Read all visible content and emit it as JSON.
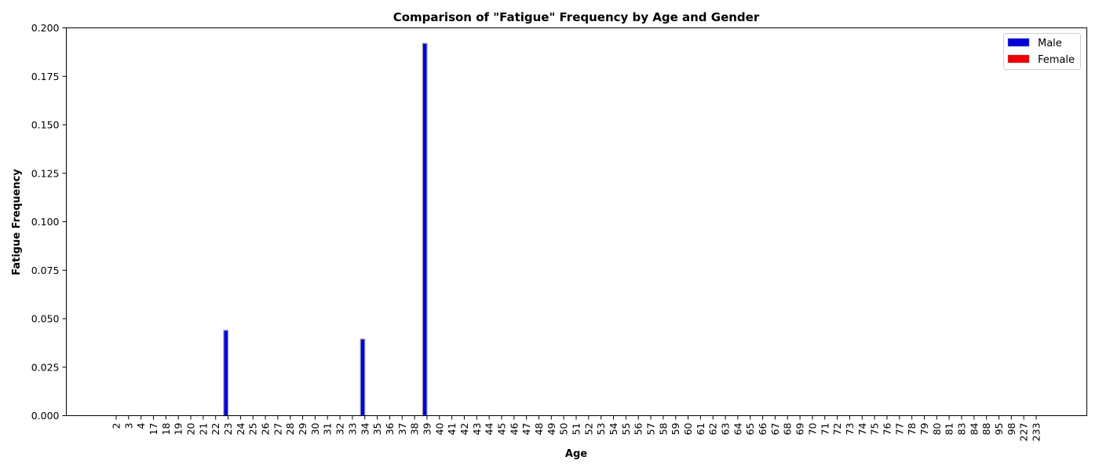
{
  "chart_data": {
    "type": "bar",
    "title": "Comparison of \"Fatigue\" Frequency by Age and Gender",
    "xlabel": "Age",
    "ylabel": "Fatigue Frequency",
    "ylim": [
      0,
      0.2
    ],
    "yticks": [
      "0.000",
      "0.025",
      "0.050",
      "0.075",
      "0.100",
      "0.125",
      "0.150",
      "0.175",
      "0.200"
    ],
    "grid": false,
    "legend_position": "top-right",
    "categories": [
      "2",
      "3",
      "4",
      "17",
      "18",
      "19",
      "20",
      "21",
      "22",
      "23",
      "24",
      "25",
      "26",
      "27",
      "28",
      "29",
      "30",
      "31",
      "32",
      "33",
      "34",
      "35",
      "36",
      "37",
      "38",
      "39",
      "40",
      "41",
      "42",
      "43",
      "44",
      "45",
      "46",
      "47",
      "48",
      "49",
      "50",
      "51",
      "52",
      "53",
      "54",
      "55",
      "56",
      "57",
      "58",
      "59",
      "60",
      "61",
      "62",
      "63",
      "64",
      "65",
      "66",
      "67",
      "68",
      "69",
      "70",
      "71",
      "72",
      "73",
      "74",
      "75",
      "76",
      "77",
      "78",
      "79",
      "80",
      "81",
      "83",
      "84",
      "88",
      "95",
      "98",
      "227",
      "233"
    ],
    "series": [
      {
        "name": "Male",
        "color": "#0000dd",
        "values": [
          0,
          0,
          0,
          0,
          0,
          0,
          0,
          0,
          0,
          0.044,
          0,
          0,
          0,
          0,
          0,
          0,
          0,
          0,
          0,
          0,
          0.0395,
          0,
          0,
          0,
          0,
          0.192,
          0,
          0,
          0,
          0,
          0,
          0,
          0,
          0,
          0,
          0,
          0,
          0,
          0,
          0,
          0,
          0,
          0,
          0,
          0,
          0,
          0,
          0,
          0,
          0,
          0,
          0,
          0,
          0,
          0,
          0,
          0,
          0,
          0,
          0,
          0,
          0,
          0,
          0,
          0,
          0,
          0,
          0,
          0,
          0,
          0,
          0,
          0,
          0,
          0
        ]
      },
      {
        "name": "Female",
        "color": "#ee0000",
        "values": [
          0,
          0,
          0,
          0,
          0,
          0,
          0,
          0,
          0,
          0,
          0,
          0,
          0,
          0,
          0,
          0,
          0,
          0,
          0,
          0,
          0,
          0,
          0,
          0,
          0,
          0,
          0,
          0,
          0,
          0,
          0,
          0,
          0,
          0,
          0,
          0,
          0,
          0,
          0,
          0,
          0,
          0,
          0,
          0,
          0,
          0,
          0,
          0,
          0,
          0,
          0,
          0,
          0,
          0,
          0,
          0,
          0,
          0,
          0,
          0,
          0,
          0,
          0,
          0,
          0,
          0,
          0,
          0,
          0,
          0,
          0,
          0,
          0,
          0,
          0
        ]
      }
    ]
  }
}
